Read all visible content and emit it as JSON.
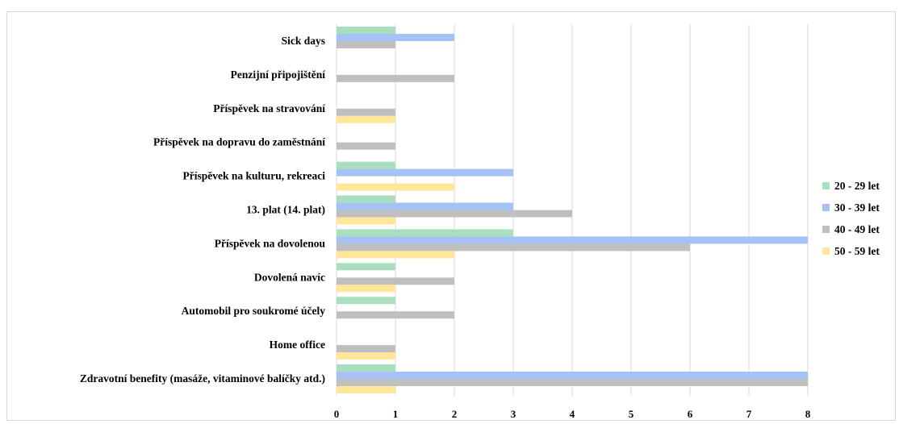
{
  "chart_data": {
    "type": "bar",
    "orientation": "horizontal",
    "title": "",
    "categories": [
      "Sick days",
      "Penzijní připojištění",
      "Příspěvek na stravování",
      "Příspěvek na dopravu do zaměstnání",
      "Příspěvek na kulturu, rekreaci",
      "13. plat (14. plat)",
      "Příspěvek na dovolenou",
      "Dovolená navíc",
      "Automobil pro soukromé účely",
      "Home office",
      "Zdravotní benefity (masáže, vitaminové balíčky atd.)"
    ],
    "series": [
      {
        "name": "20 - 29 let",
        "color": "#a9dfbf",
        "values": [
          1,
          0,
          0,
          0,
          1,
          1,
          3,
          1,
          1,
          0,
          1
        ]
      },
      {
        "name": "30 - 39 let",
        "color": "#a4c2f4",
        "values": [
          2,
          0,
          0,
          0,
          3,
          3,
          8,
          0,
          0,
          0,
          8
        ]
      },
      {
        "name": "40 - 49 let",
        "color": "#bfbfbf",
        "values": [
          1,
          2,
          1,
          1,
          0,
          4,
          6,
          2,
          2,
          1,
          8
        ]
      },
      {
        "name": "50 - 59 let",
        "color": "#ffe699",
        "values": [
          0,
          0,
          1,
          0,
          2,
          1,
          2,
          1,
          0,
          1,
          1
        ]
      }
    ],
    "xlim": [
      0,
      8
    ],
    "xticks": [
      0,
      1,
      2,
      3,
      4,
      5,
      6,
      7,
      8
    ],
    "grid": true,
    "legend_position": "right"
  }
}
